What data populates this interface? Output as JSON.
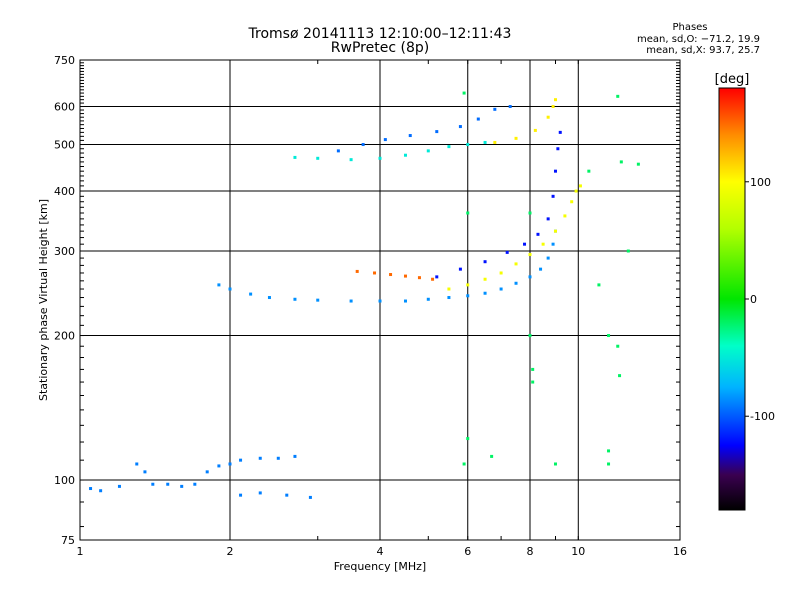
{
  "header": {
    "title_line1": "Tromsø 20141113 12:10:00–12:11:43",
    "title_line2": "RwPretec (8p)",
    "phase_title": "Phases",
    "phase_o": "mean, sd,O: −71.2, 19.9",
    "phase_x": "mean, sd,X: 93.7, 25.7"
  },
  "chart_data": {
    "type": "scatter",
    "xlabel": "Frequency [MHz]",
    "ylabel": "Stationary phase Virtual Height [km]",
    "x_scale": "log",
    "y_scale": "log",
    "xlim": [
      1,
      16
    ],
    "ylim": [
      75,
      750
    ],
    "x_ticks": [
      1,
      2,
      4,
      6,
      8,
      10,
      16
    ],
    "y_ticks": [
      75,
      100,
      200,
      300,
      400,
      500,
      600,
      750
    ],
    "grid": true,
    "colorbar": {
      "label": "[deg]",
      "range": [
        -180,
        180
      ],
      "ticks": [
        100,
        0,
        -100
      ]
    },
    "series": [
      {
        "values": [
          [
            1.05,
            96
          ],
          [
            1.1,
            95
          ],
          [
            1.2,
            97
          ],
          [
            1.3,
            108
          ],
          [
            1.35,
            104
          ],
          [
            1.4,
            98
          ],
          [
            1.5,
            98
          ],
          [
            1.6,
            97
          ],
          [
            1.7,
            98
          ],
          [
            1.8,
            104
          ],
          [
            1.9,
            107
          ],
          [
            2.0,
            108
          ],
          [
            2.1,
            110
          ],
          [
            2.3,
            111
          ],
          [
            2.5,
            111
          ],
          [
            2.7,
            112
          ],
          [
            2.1,
            93
          ],
          [
            2.3,
            94
          ],
          [
            2.6,
            93
          ],
          [
            2.9,
            92
          ]
        ],
        "phase": -90
      },
      {
        "values": [
          [
            1.9,
            255
          ],
          [
            2.0,
            250
          ],
          [
            2.2,
            244
          ],
          [
            2.4,
            240
          ],
          [
            2.7,
            238
          ],
          [
            3.0,
            237
          ],
          [
            3.5,
            236
          ],
          [
            4.0,
            236
          ],
          [
            4.5,
            236
          ],
          [
            5.0,
            238
          ],
          [
            5.5,
            240
          ],
          [
            6.0,
            242
          ],
          [
            6.5,
            245
          ],
          [
            7.0,
            250
          ],
          [
            7.5,
            257
          ],
          [
            8.0,
            265
          ],
          [
            8.4,
            275
          ],
          [
            8.7,
            290
          ],
          [
            8.9,
            310
          ],
          [
            9.0,
            330
          ]
        ],
        "phase": -85
      },
      {
        "values": [
          [
            3.6,
            272
          ],
          [
            3.9,
            270
          ],
          [
            4.2,
            268
          ],
          [
            4.5,
            266
          ],
          [
            4.8,
            264
          ],
          [
            5.1,
            262
          ]
        ],
        "phase": 150
      },
      {
        "values": [
          [
            5.5,
            250
          ],
          [
            6.0,
            255
          ],
          [
            6.5,
            262
          ],
          [
            7.0,
            270
          ],
          [
            7.5,
            282
          ],
          [
            8.0,
            295
          ],
          [
            8.5,
            310
          ],
          [
            9.0,
            330
          ],
          [
            9.4,
            355
          ],
          [
            9.7,
            380
          ],
          [
            9.9,
            400
          ],
          [
            10.1,
            410
          ]
        ],
        "phase": 95
      },
      {
        "values": [
          [
            5.2,
            265
          ],
          [
            5.8,
            275
          ],
          [
            6.5,
            285
          ],
          [
            7.2,
            298
          ],
          [
            7.8,
            310
          ],
          [
            8.3,
            325
          ],
          [
            8.7,
            350
          ],
          [
            8.9,
            390
          ],
          [
            9.0,
            440
          ],
          [
            9.1,
            490
          ],
          [
            9.2,
            530
          ]
        ],
        "phase": -120
      },
      {
        "values": [
          [
            2.7,
            470
          ],
          [
            3.0,
            468
          ],
          [
            3.5,
            465
          ],
          [
            4.0,
            468
          ],
          [
            4.5,
            475
          ],
          [
            5.0,
            485
          ],
          [
            5.5,
            495
          ],
          [
            6.0,
            500
          ],
          [
            6.5,
            505
          ]
        ],
        "phase": -50
      },
      {
        "values": [
          [
            3.3,
            485
          ],
          [
            3.7,
            500
          ],
          [
            4.1,
            512
          ],
          [
            4.6,
            522
          ],
          [
            5.2,
            532
          ],
          [
            5.8,
            545
          ],
          [
            6.3,
            565
          ],
          [
            6.8,
            592
          ],
          [
            7.3,
            600
          ]
        ],
        "phase": -95
      },
      {
        "values": [
          [
            6.8,
            505
          ],
          [
            7.5,
            515
          ],
          [
            8.2,
            535
          ],
          [
            8.7,
            570
          ],
          [
            8.9,
            600
          ],
          [
            9.0,
            620
          ]
        ],
        "phase": 105
      },
      {
        "values": [
          [
            5.9,
            640
          ],
          [
            6.0,
            360
          ],
          [
            6.0,
            122
          ],
          [
            5.9,
            108
          ],
          [
            6.7,
            112
          ],
          [
            8.0,
            360
          ],
          [
            8.0,
            200
          ],
          [
            8.1,
            170
          ],
          [
            8.1,
            160
          ],
          [
            9.0,
            108
          ],
          [
            10.5,
            440
          ],
          [
            11.0,
            255
          ],
          [
            11.5,
            200
          ],
          [
            11.5,
            115
          ],
          [
            11.5,
            108
          ],
          [
            12.0,
            630
          ],
          [
            12.2,
            460
          ],
          [
            12.0,
            190
          ],
          [
            12.1,
            165
          ],
          [
            12.6,
            300
          ],
          [
            13.2,
            455
          ]
        ],
        "phase": -20
      }
    ]
  }
}
